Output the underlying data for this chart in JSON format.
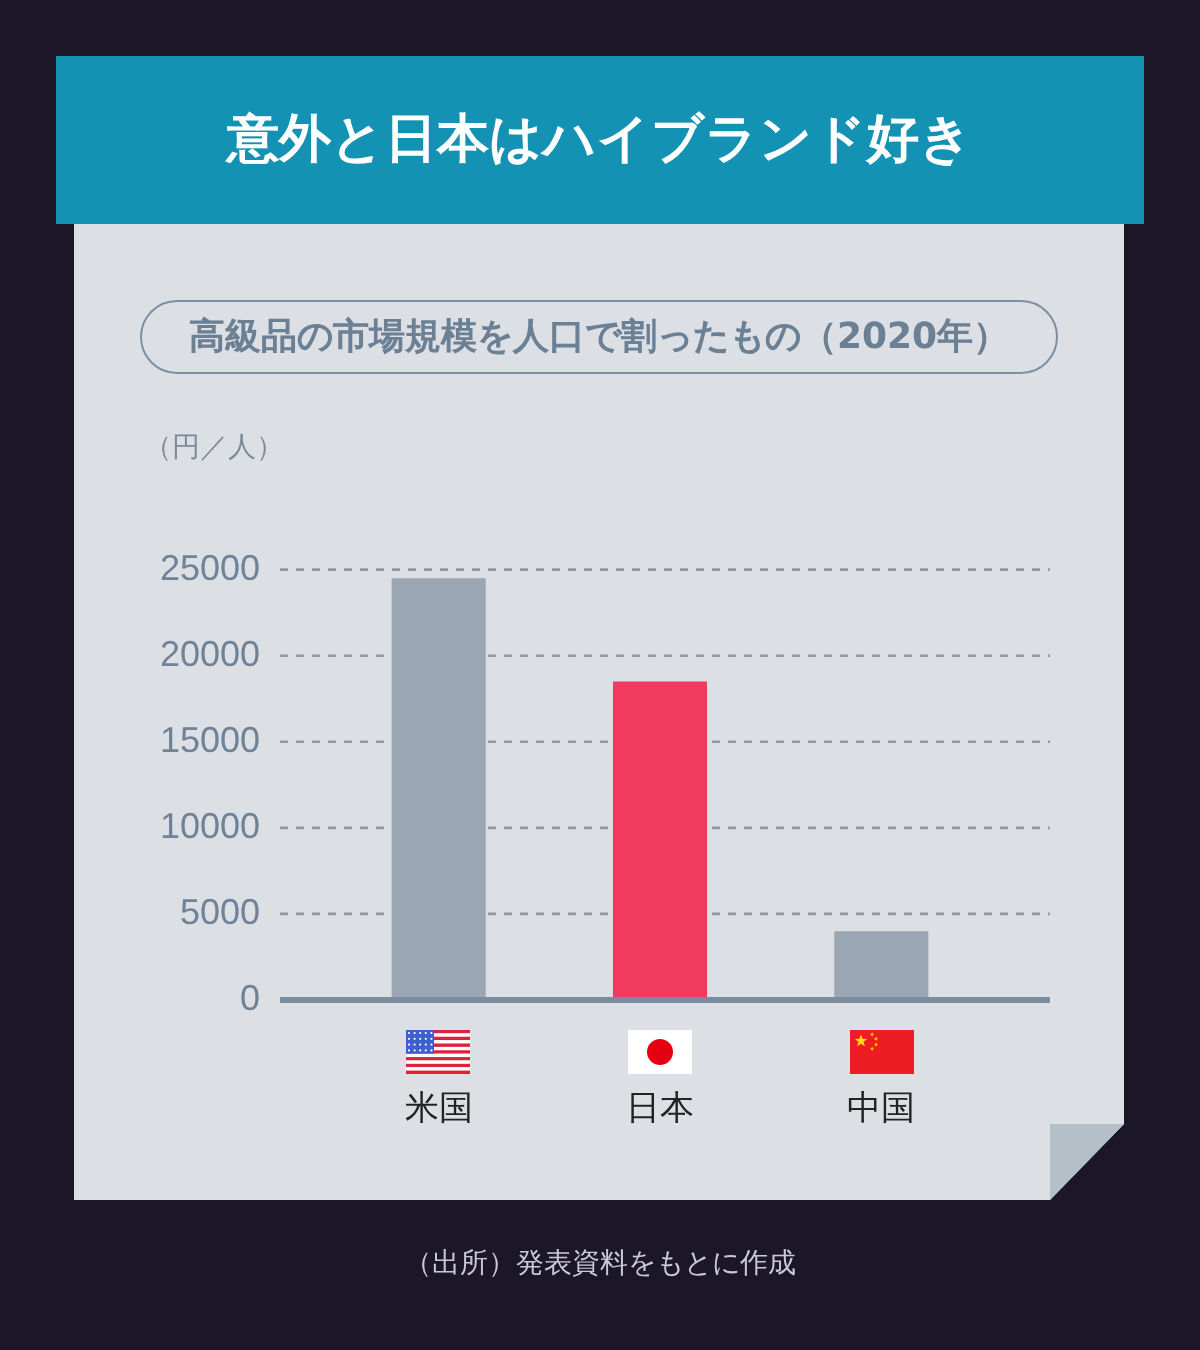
{
  "chart_data": {
    "type": "bar",
    "title": "意外と日本はハイブランド好き",
    "subtitle": "高級品の市場規模を人口で割ったもの（2020年）",
    "ylabel": "（円／人）",
    "categories": [
      "米国",
      "日本",
      "中国"
    ],
    "values": [
      24500,
      18500,
      4000
    ],
    "colors": [
      "#9aa6b3",
      "#f2395e",
      "#9aa6b3"
    ],
    "ylim": [
      0,
      25000
    ],
    "yticks": [
      0,
      5000,
      10000,
      15000,
      20000,
      25000
    ],
    "grid": "y",
    "annotations": [
      "（出所）発表資料をもとに作成"
    ]
  }
}
